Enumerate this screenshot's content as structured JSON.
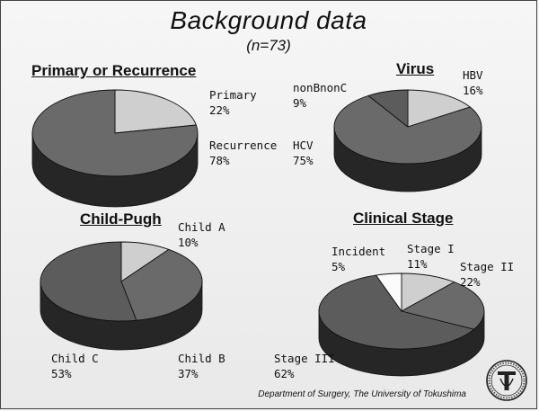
{
  "slide": {
    "title": "Background data",
    "subtitle": "(n=73)",
    "footer": "Department of Surgery, The University of Tokushima"
  },
  "colors": {
    "light": "#cfcfcf",
    "mid": "#6a6a6a",
    "dark": "#5c5c5c",
    "white": "#fbfbfb",
    "side": "#262626"
  },
  "chart_data": [
    {
      "type": "pie",
      "title": "Primary or Recurrence",
      "slices": [
        {
          "name": "Primary",
          "value": 22,
          "label": "22%"
        },
        {
          "name": "Recurrence",
          "value": 78,
          "label": "78%"
        }
      ]
    },
    {
      "type": "pie",
      "title": "Virus",
      "slices": [
        {
          "name": "HBV",
          "value": 16,
          "label": "16%"
        },
        {
          "name": "HCV",
          "value": 75,
          "label": "75%"
        },
        {
          "name": "nonBnonC",
          "value": 9,
          "label": "9%"
        }
      ]
    },
    {
      "type": "pie",
      "title": "Child-Pugh",
      "slices": [
        {
          "name": "Child A",
          "value": 10,
          "label": "10%"
        },
        {
          "name": "Child B",
          "value": 37,
          "label": "37%"
        },
        {
          "name": "Child C",
          "value": 53,
          "label": "53%"
        }
      ]
    },
    {
      "type": "pie",
      "title": "Clinical Stage",
      "slices": [
        {
          "name": "Stage I",
          "value": 11,
          "label": "11%"
        },
        {
          "name": "Stage II",
          "value": 22,
          "label": "22%"
        },
        {
          "name": "Stage III",
          "value": 62,
          "label": "62%"
        },
        {
          "name": "Incident",
          "value": 5,
          "label": "5%"
        }
      ]
    }
  ]
}
